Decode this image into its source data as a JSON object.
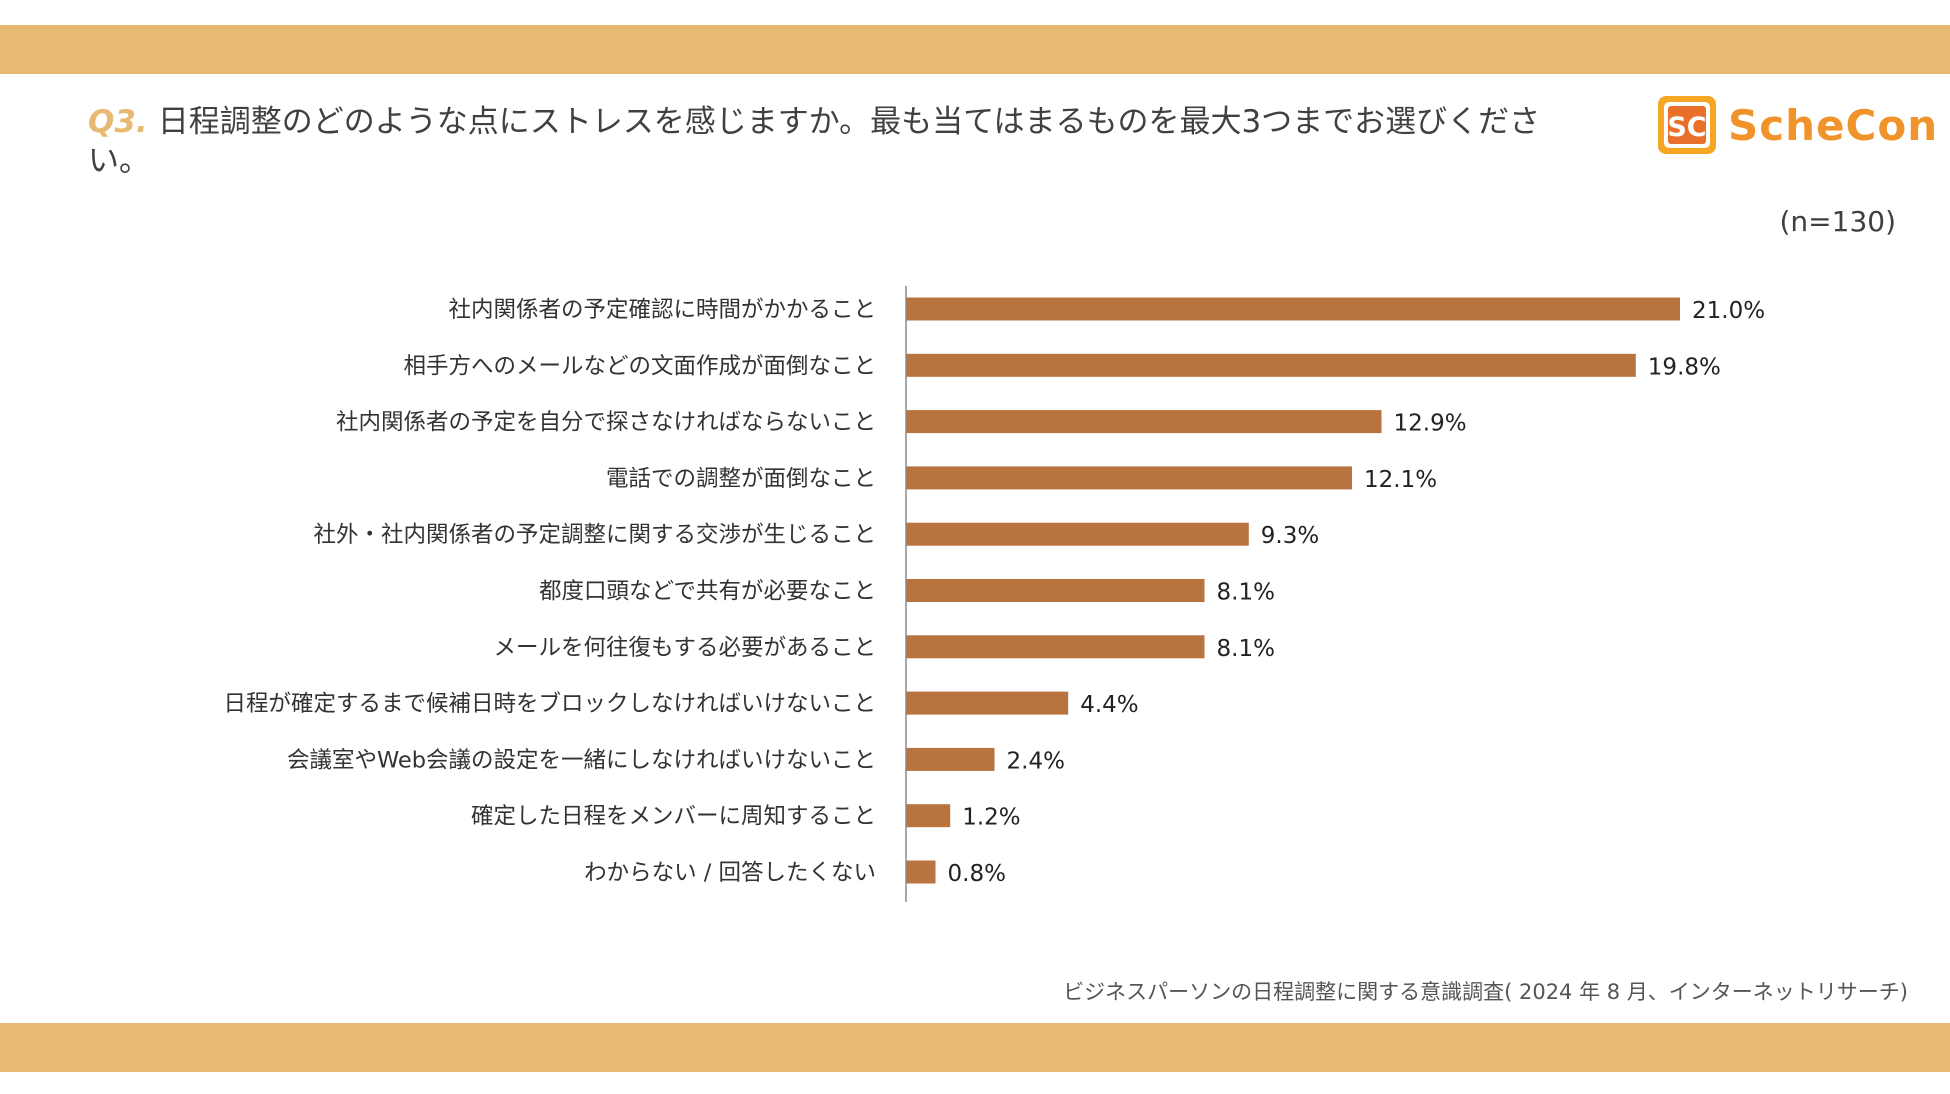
{
  "question": {
    "number": "Q3.",
    "text": "日程調整のどのような点にストレスを感じますか。最も当てはまるものを最大3つまでお選びください。"
  },
  "logo": {
    "mark": "SC",
    "text": "ScheCon"
  },
  "sample_size": "(n=130)",
  "source": "ビジネスパーソンの日程調整に関する意識調査( 2024 年 8 月、インターネットリサーチ)",
  "colors": {
    "band": "#e7b972",
    "bar": "#b8733e",
    "logo": "#f0932b",
    "qnum": "#e7b972"
  },
  "chart_data": {
    "type": "bar",
    "orientation": "horizontal",
    "title": "日程調整のどのような点にストレスを感じますか。最も当てはまるものを最大3つまでお選びください。",
    "xlabel": "",
    "ylabel": "",
    "xlim": [
      0,
      21.0
    ],
    "unit": "%",
    "grid": false,
    "legend": "none",
    "categories": [
      "社内関係者の予定確認に時間がかかること",
      "相手方へのメールなどの文面作成が面倒なこと",
      "社内関係者の予定を自分で探さなければならないこと",
      "電話での調整が面倒なこと",
      "社外・社内関係者の予定調整に関する交渉が生じること",
      "都度口頭などで共有が必要なこと",
      "メールを何往復もする必要があること",
      "日程が確定するまで候補日時をブロックしなければいけないこと",
      "会議室やWeb会議の設定を一緒にしなければいけないこと",
      "確定した日程をメンバーに周知すること",
      "わからない / 回答したくない"
    ],
    "values": [
      21.0,
      19.8,
      12.9,
      12.1,
      9.3,
      8.1,
      8.1,
      4.4,
      2.4,
      1.2,
      0.8
    ],
    "value_labels": [
      "21.0%",
      "19.8%",
      "12.9%",
      "12.1%",
      "9.3%",
      "8.1%",
      "8.1%",
      "4.4%",
      "2.4%",
      "1.2%",
      "0.8%"
    ]
  }
}
